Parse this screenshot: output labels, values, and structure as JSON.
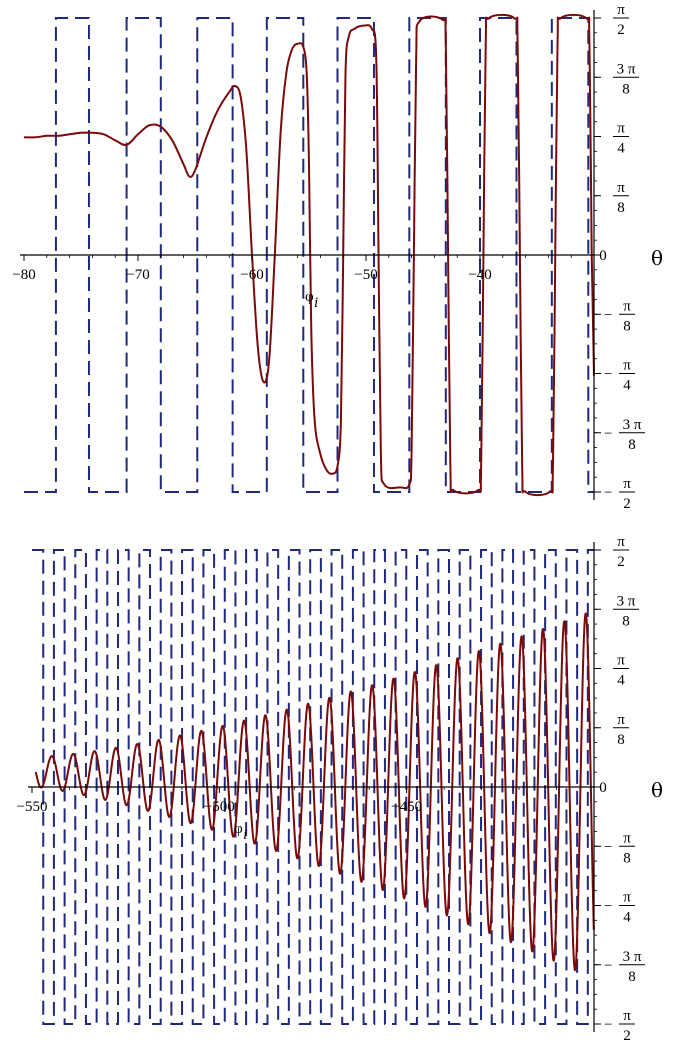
{
  "chart_data": [
    {
      "type": "line",
      "xlim": [
        -80,
        -30
      ],
      "ylim": [
        -1.5708,
        1.5708
      ],
      "x_ticks": [
        -80,
        -70,
        -60,
        -50,
        -40
      ],
      "x_tick_labels": [
        "−80",
        "−70",
        "−60",
        "−50",
        "−40"
      ],
      "x_end_tick_label": "0",
      "y_ticks": [
        {
          "value": 1.5708,
          "num": "π",
          "den": "2",
          "sign": ""
        },
        {
          "value": 1.1781,
          "num": "3 π",
          "den": "8",
          "sign": ""
        },
        {
          "value": 0.7854,
          "num": "π",
          "den": "4",
          "sign": ""
        },
        {
          "value": 0.3927,
          "num": "π",
          "den": "8",
          "sign": ""
        },
        {
          "value": 0,
          "num": "",
          "den": "",
          "sign": "",
          "plain": "0"
        },
        {
          "value": -0.3927,
          "num": "π",
          "den": "8",
          "sign": "−"
        },
        {
          "value": -0.7854,
          "num": "π",
          "den": "4",
          "sign": "−"
        },
        {
          "value": -1.1781,
          "num": "3 π",
          "den": "8",
          "sign": "−"
        },
        {
          "value": -1.5708,
          "num": "π",
          "den": "2",
          "sign": "−"
        }
      ],
      "axis_label": "θ",
      "annotation": "φ",
      "annotation_sub": "i",
      "annotation_x": -55,
      "square_wave_color": "#1f2b7a",
      "curve_color": "#7a0a0a",
      "square_wave_edges": [
        -77.2,
        -74.3,
        -71.0,
        -68.0,
        -64.8,
        -61.7,
        -58.7,
        -55.5,
        -52.5,
        -49.3,
        -46.2,
        -43.0,
        -40.0,
        -36.8,
        -33.7,
        -30.5
      ],
      "square_wave_start_level": "low",
      "curve_points": [
        [
          -80,
          0.78
        ],
        [
          -79,
          0.78
        ],
        [
          -78,
          0.79
        ],
        [
          -77,
          0.79
        ],
        [
          -76,
          0.8
        ],
        [
          -75,
          0.81
        ],
        [
          -74,
          0.81
        ],
        [
          -73,
          0.8
        ],
        [
          -72,
          0.76
        ],
        [
          -71,
          0.73
        ],
        [
          -70,
          0.8
        ],
        [
          -69,
          0.86
        ],
        [
          -68,
          0.85
        ],
        [
          -67,
          0.76
        ],
        [
          -66,
          0.6
        ],
        [
          -65.5,
          0.52
        ],
        [
          -65,
          0.56
        ],
        [
          -64,
          0.78
        ],
        [
          -63,
          0.96
        ],
        [
          -62,
          1.08
        ],
        [
          -61.5,
          1.12
        ],
        [
          -61,
          1.05
        ],
        [
          -60.5,
          0.7
        ],
        [
          -60,
          0.0
        ],
        [
          -59.5,
          -0.6
        ],
        [
          -59,
          -0.84
        ],
        [
          -58.5,
          -0.7
        ],
        [
          -58,
          0.0
        ],
        [
          -57.5,
          0.8
        ],
        [
          -57,
          1.2
        ],
        [
          -56.5,
          1.36
        ],
        [
          -56,
          1.4
        ],
        [
          -55.5,
          1.38
        ],
        [
          -55.2,
          1.2
        ],
        [
          -55,
          0.6
        ],
        [
          -54.8,
          -0.5
        ],
        [
          -54.5,
          -1.1
        ],
        [
          -54,
          -1.32
        ],
        [
          -53.5,
          -1.42
        ],
        [
          -53,
          -1.45
        ],
        [
          -52.5,
          -1.4
        ],
        [
          -52.2,
          -1.1
        ],
        [
          -52,
          0.0
        ],
        [
          -51.8,
          1.2
        ],
        [
          -51.5,
          1.45
        ],
        [
          -51,
          1.5
        ],
        [
          -50.2,
          1.52
        ],
        [
          -49.5,
          1.5
        ],
        [
          -49.1,
          1.3
        ],
        [
          -48.9,
          0.0
        ],
        [
          -48.7,
          -1.3
        ],
        [
          -48.4,
          -1.52
        ],
        [
          -47,
          -1.54
        ],
        [
          -46.2,
          -1.52
        ],
        [
          -46.0,
          -1.3
        ],
        [
          -45.8,
          0.0
        ],
        [
          -45.6,
          1.3
        ],
        [
          -45.3,
          1.55
        ],
        [
          -43.3,
          1.56
        ],
        [
          -43.0,
          1.4
        ],
        [
          -42.8,
          0.0
        ],
        [
          -42.6,
          -1.4
        ],
        [
          -42.3,
          -1.56
        ],
        [
          -40.2,
          -1.56
        ],
        [
          -39.9,
          -1.4
        ],
        [
          -39.7,
          0.0
        ],
        [
          -39.5,
          1.4
        ],
        [
          -39.2,
          1.57
        ],
        [
          -37.0,
          1.57
        ],
        [
          -36.7,
          1.4
        ],
        [
          -36.5,
          0.0
        ],
        [
          -36.3,
          -1.4
        ],
        [
          -36.0,
          -1.57
        ],
        [
          -33.9,
          -1.57
        ],
        [
          -33.6,
          -1.4
        ],
        [
          -33.4,
          0.0
        ],
        [
          -33.2,
          1.4
        ],
        [
          -32.9,
          1.57
        ],
        [
          -30.7,
          1.57
        ],
        [
          -30.4,
          1.4
        ],
        [
          -30.2,
          0.0
        ],
        [
          -30.0,
          -0.8
        ]
      ]
    },
    {
      "type": "line",
      "xlim": [
        -550,
        -400
      ],
      "ylim": [
        -1.5708,
        1.5708
      ],
      "x_ticks": [
        -550,
        -500,
        -450
      ],
      "x_tick_labels": [
        "−550",
        "−500",
        "−450"
      ],
      "x_end_tick_label": "0",
      "y_ticks": [
        {
          "value": 1.5708,
          "num": "π",
          "den": "2",
          "sign": ""
        },
        {
          "value": 1.1781,
          "num": "3 π",
          "den": "8",
          "sign": ""
        },
        {
          "value": 0.7854,
          "num": "π",
          "den": "4",
          "sign": ""
        },
        {
          "value": 0.3927,
          "num": "π",
          "den": "8",
          "sign": ""
        },
        {
          "value": 0,
          "num": "",
          "den": "",
          "sign": "",
          "plain": "0"
        },
        {
          "value": -0.3927,
          "num": "π",
          "den": "8",
          "sign": "−"
        },
        {
          "value": -0.7854,
          "num": "π",
          "den": "4",
          "sign": "−"
        },
        {
          "value": -1.1781,
          "num": "3 π",
          "den": "8",
          "sign": "−"
        },
        {
          "value": -1.5708,
          "num": "π",
          "den": "2",
          "sign": "−"
        }
      ],
      "axis_label": "θ",
      "annotation": "φ",
      "annotation_sub": "i",
      "annotation_x": -495,
      "square_wave_color": "#1f2b7a",
      "curve_color": "#7a0a0a",
      "square_wave_period": 5.7,
      "square_wave_first_edge": -547,
      "square_wave_start_level": "high",
      "curve_oscillation": {
        "x_start": -549,
        "x_end": -400,
        "period": 5.7,
        "center_start": 0.1,
        "center_end": -0.05,
        "amp_start": 0.1,
        "amp_end": 1.22
      }
    }
  ]
}
